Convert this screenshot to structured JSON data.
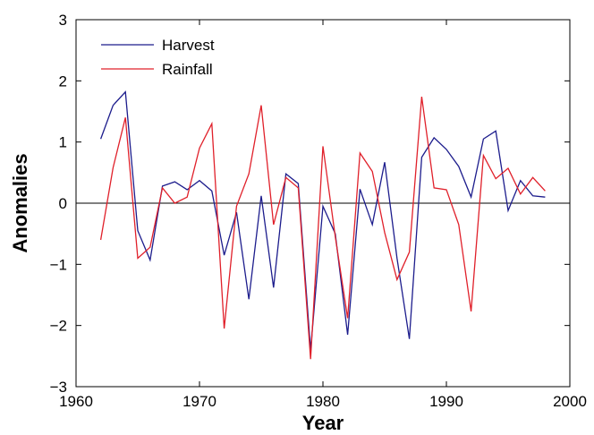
{
  "chart_data": {
    "type": "line",
    "title": "",
    "xlabel": "Year",
    "ylabel": "Anomalies",
    "xlim": [
      1960,
      2000
    ],
    "ylim": [
      -3,
      3
    ],
    "xticks": [
      1960,
      1970,
      1980,
      1990,
      2000
    ],
    "yticks": [
      -3,
      -2,
      -1,
      0,
      1,
      2,
      3
    ],
    "grid": false,
    "zero_line": true,
    "legend_position": "top-left",
    "x": [
      1962,
      1963,
      1964,
      1965,
      1966,
      1967,
      1968,
      1969,
      1970,
      1971,
      1972,
      1973,
      1974,
      1975,
      1976,
      1977,
      1978,
      1979,
      1980,
      1981,
      1982,
      1983,
      1984,
      1985,
      1986,
      1987,
      1988,
      1989,
      1990,
      1991,
      1992,
      1993,
      1994,
      1995,
      1996,
      1997,
      1998
    ],
    "series": [
      {
        "name": "Harvest",
        "color": "#1c1c8c",
        "values": [
          1.05,
          1.6,
          1.82,
          -0.45,
          -0.93,
          0.28,
          0.35,
          0.22,
          0.37,
          0.2,
          -0.85,
          -0.15,
          -1.57,
          0.12,
          -1.38,
          0.48,
          0.32,
          -2.4,
          -0.05,
          -0.5,
          -2.15,
          0.23,
          -0.35,
          0.67,
          -0.9,
          -2.22,
          0.75,
          1.07,
          0.88,
          0.6,
          0.1,
          1.05,
          1.18,
          -0.12,
          0.37,
          0.12,
          0.1
        ]
      },
      {
        "name": "Rainfall",
        "color": "#e0202a",
        "values": [
          -0.6,
          0.58,
          1.4,
          -0.9,
          -0.72,
          0.25,
          0.0,
          0.1,
          0.9,
          1.3,
          -2.05,
          -0.05,
          0.48,
          1.6,
          -0.35,
          0.42,
          0.25,
          -2.55,
          0.93,
          -0.55,
          -1.88,
          0.82,
          0.52,
          -0.48,
          -1.25,
          -0.8,
          1.74,
          0.25,
          0.22,
          -0.35,
          -1.77,
          0.78,
          0.4,
          0.57,
          0.15,
          0.42,
          0.2
        ]
      }
    ]
  }
}
